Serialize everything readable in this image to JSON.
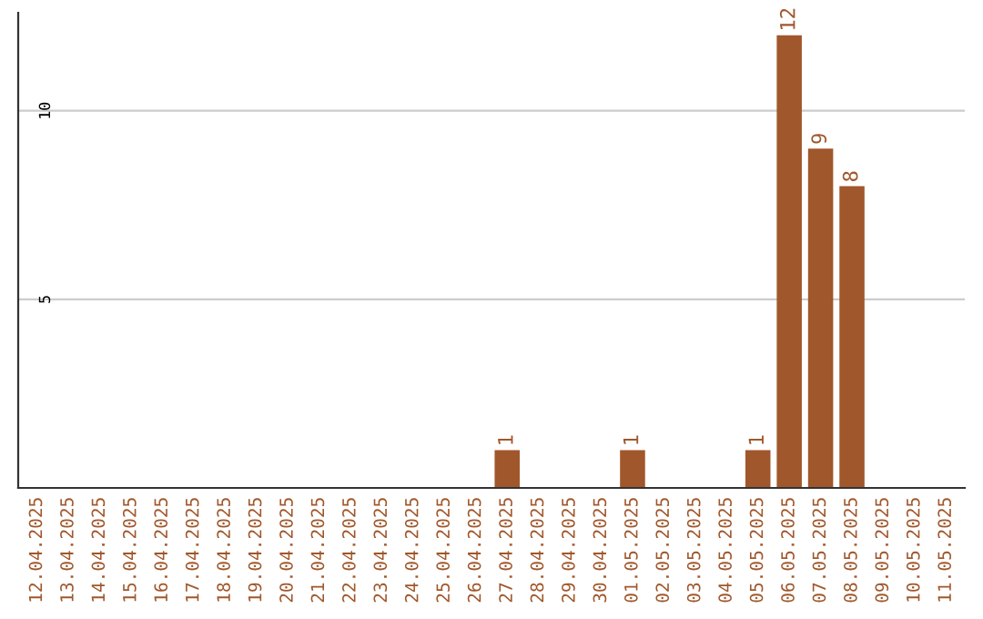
{
  "chart_data": {
    "type": "bar",
    "categories": [
      "12.04.2025",
      "13.04.2025",
      "14.04.2025",
      "15.04.2025",
      "16.04.2025",
      "17.04.2025",
      "18.04.2025",
      "19.04.2025",
      "20.04.2025",
      "21.04.2025",
      "22.04.2025",
      "23.04.2025",
      "24.04.2025",
      "25.04.2025",
      "26.04.2025",
      "27.04.2025",
      "28.04.2025",
      "29.04.2025",
      "30.04.2025",
      "01.05.2025",
      "02.05.2025",
      "03.05.2025",
      "04.05.2025",
      "05.05.2025",
      "06.05.2025",
      "07.05.2025",
      "08.05.2025",
      "09.05.2025",
      "10.05.2025",
      "11.05.2025"
    ],
    "values": [
      0,
      0,
      0,
      0,
      0,
      0,
      0,
      0,
      0,
      0,
      0,
      0,
      0,
      0,
      0,
      1,
      0,
      0,
      0,
      1,
      0,
      0,
      0,
      1,
      12,
      9,
      8,
      0,
      0,
      0
    ],
    "value_labels": [
      null,
      null,
      null,
      null,
      null,
      null,
      null,
      null,
      null,
      null,
      null,
      null,
      null,
      null,
      null,
      "1",
      null,
      null,
      null,
      "1",
      null,
      null,
      null,
      "1",
      "12",
      "9",
      "8",
      null,
      null,
      null
    ],
    "color": "#a0572b",
    "ylim": [
      0,
      12.6
    ],
    "yticks": [
      5,
      10
    ],
    "grid": "y"
  }
}
